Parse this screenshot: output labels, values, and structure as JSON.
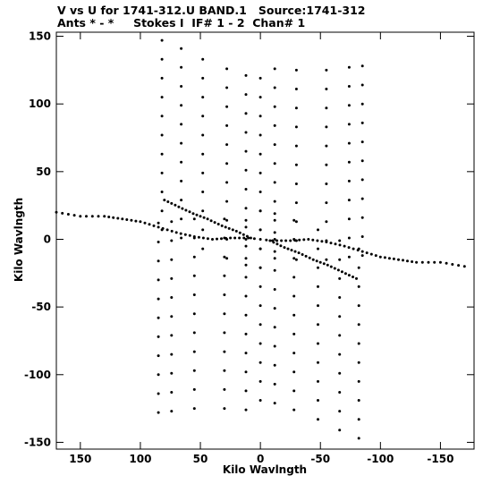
{
  "header": {
    "title_line1": "V vs U for 1741-312.U BAND.1   Source:1741-312",
    "title_line2": "Ants * - *     Stokes I  IF# 1 - 2  Chan# 1"
  },
  "chart_data": {
    "type": "scatter",
    "title": "V vs U for 1741-312.U BAND.1   Source:1741-312",
    "subtitle": "Ants * - *     Stokes I  IF# 1 - 2  Chan# 1",
    "xlabel": "Kilo Wavlngth",
    "ylabel": "Kilo Wavlngth",
    "xlim": [
      170,
      -178
    ],
    "ylim": [
      -155,
      153
    ],
    "x_ticks": [
      150,
      100,
      50,
      0,
      -50,
      -100,
      -150
    ],
    "x_tick_labels": [
      "150",
      "100",
      "50",
      "0",
      "-50",
      "-100",
      "-150"
    ],
    "y_ticks": [
      150,
      100,
      50,
      0,
      -50,
      -100,
      -150
    ],
    "y_tick_labels": [
      "150",
      "100",
      "50",
      "0",
      "-50",
      "-100",
      "-150"
    ],
    "grid": false,
    "marker_color": "#000000",
    "tracks": [
      {
        "name": "upper-spokes",
        "center_x": 0,
        "center_y": 119,
        "spokes": [
          [
            82,
            28
          ],
          [
            66,
            22
          ],
          [
            48,
            14
          ],
          [
            28,
            7
          ],
          [
            12,
            2
          ],
          [
            -12,
            7
          ],
          [
            -30,
            6
          ],
          [
            -55,
            6
          ],
          [
            -74,
            8
          ],
          [
            -85,
            9
          ]
        ],
        "rows": [
          0,
          -14,
          -28,
          -42,
          -56,
          -70,
          -84,
          -98,
          -112,
          -126,
          -140
        ],
        "mirror": true
      },
      {
        "name": "horizontal-band",
        "points": [
          [
            170,
            20
          ],
          [
            150,
            17
          ],
          [
            130,
            17
          ],
          [
            115,
            15
          ],
          [
            100,
            13
          ],
          [
            85,
            9
          ],
          [
            70,
            5
          ],
          [
            55,
            2
          ],
          [
            40,
            0
          ],
          [
            25,
            1
          ],
          [
            10,
            1
          ],
          [
            -10,
            -1
          ],
          [
            -25,
            -1
          ],
          [
            -40,
            0
          ],
          [
            -55,
            -2
          ],
          [
            -70,
            -5
          ],
          [
            -85,
            -9
          ],
          [
            -100,
            -13
          ],
          [
            -115,
            -15
          ],
          [
            -130,
            -17
          ],
          [
            -150,
            -17
          ],
          [
            -170,
            -20
          ]
        ],
        "mirror": false
      },
      {
        "name": "diagonal-arms",
        "points": [
          [
            8,
            1
          ],
          [
            20,
            6
          ],
          [
            32,
            10
          ],
          [
            44,
            15
          ],
          [
            56,
            19
          ],
          [
            68,
            24
          ],
          [
            80,
            29
          ]
        ],
        "mirror": true
      }
    ]
  }
}
